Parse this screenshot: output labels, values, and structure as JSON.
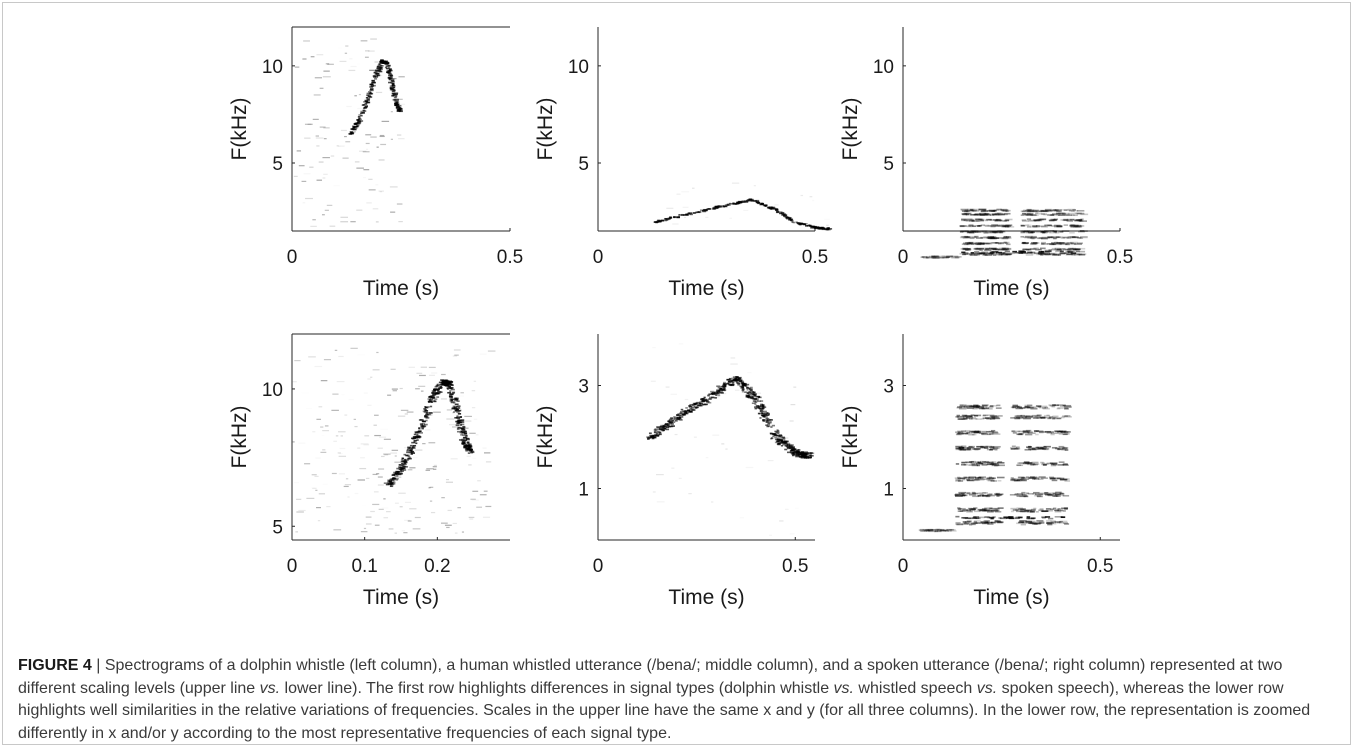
{
  "figure": {
    "label": "FIGURE 4",
    "separator": " | ",
    "caption_parts": [
      {
        "t": "Spectrograms of a dolphin whistle (left column), a human whistled utterance (/bena/; middle column), and a spoken utterance (/bena/; right column) represented at two different scaling levels (upper line ",
        "i": false
      },
      {
        "t": "vs.",
        "i": true
      },
      {
        "t": " lower line). The first row highlights differences in signal types (dolphin whistle ",
        "i": false
      },
      {
        "t": "vs.",
        "i": true
      },
      {
        "t": " whistled speech ",
        "i": false
      },
      {
        "t": "vs.",
        "i": true
      },
      {
        "t": " spoken speech), whereas the lower row highlights well similarities in the relative variations of frequencies. Scales in the upper line have the same x and y (for all three columns). In the lower row, the representation is zoomed differently in x and/or y according to the most representative frequencies of each signal type.",
        "i": false
      }
    ]
  },
  "chart_data": [
    {
      "type": "heatmap",
      "panel": "row1-col1",
      "signal": "dolphin whistle",
      "xlabel": "Time (s)",
      "ylabel": "F(kHz)",
      "xticks": [
        "0",
        "0.5"
      ],
      "yticks": [
        "5",
        "10"
      ],
      "xlim": [
        0,
        0.5
      ],
      "ylim": [
        1.5,
        12
      ]
    },
    {
      "type": "heatmap",
      "panel": "row1-col2",
      "signal": "human whistled utterance",
      "xlabel": "Time (s)",
      "ylabel": "F(kHz)",
      "xticks": [
        "0",
        "0.5"
      ],
      "yticks": [
        "5",
        "10"
      ],
      "xlim": [
        0,
        0.5
      ],
      "ylim": [
        1.5,
        12
      ]
    },
    {
      "type": "heatmap",
      "panel": "row1-col3",
      "signal": "spoken utterance",
      "xlabel": "Time (s)",
      "ylabel": "F(kHz)",
      "xticks": [
        "0",
        "0.5"
      ],
      "yticks": [
        "5",
        "10"
      ],
      "xlim": [
        0,
        0.5
      ],
      "ylim": [
        1.5,
        12
      ]
    },
    {
      "type": "heatmap",
      "panel": "row2-col1",
      "signal": "dolphin whistle",
      "xlabel": "Time (s)",
      "ylabel": "F(kHz)",
      "xticks": [
        "0",
        "0.1",
        "0.2"
      ],
      "yticks": [
        "5",
        "10"
      ],
      "xlim": [
        0,
        0.3
      ],
      "ylim": [
        4.5,
        12
      ]
    },
    {
      "type": "heatmap",
      "panel": "row2-col2",
      "signal": "human whistled utterance",
      "xlabel": "Time (s)",
      "ylabel": "F(kHz)",
      "xticks": [
        "0",
        "0.5"
      ],
      "yticks": [
        "1",
        "3"
      ],
      "xlim": [
        0,
        0.55
      ],
      "ylim": [
        0,
        4
      ]
    },
    {
      "type": "heatmap",
      "panel": "row2-col3",
      "signal": "spoken utterance",
      "xlabel": "Time (s)",
      "ylabel": "F(kHz)",
      "xticks": [
        "0",
        "0.5"
      ],
      "yticks": [
        "1",
        "3"
      ],
      "xlim": [
        0,
        0.55
      ],
      "ylim": [
        0,
        4
      ]
    }
  ]
}
